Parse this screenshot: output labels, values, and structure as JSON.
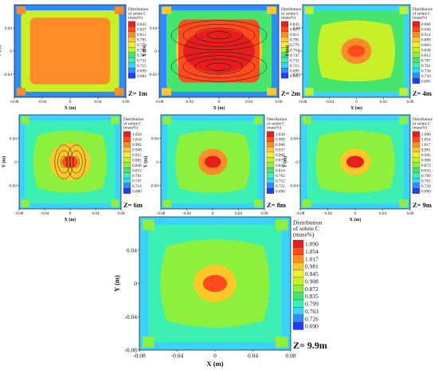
{
  "chart_data": [
    {
      "type": "heatmap",
      "panel_label": "Z= 1m",
      "legend_title": [
        "Distribution",
        "of solute C",
        "(mass%)"
      ],
      "legend_levels": [
        0.843,
        0.827,
        0.811,
        0.795,
        0.779,
        0.763,
        0.747,
        0.731,
        0.715,
        0.699,
        0.683
      ],
      "xlabel": "X (m)",
      "ylabel": "Y (m)",
      "xticks": [
        "-0.08",
        "-0.04",
        "0",
        "0.04",
        "0.08"
      ],
      "yticks": [
        "0.04",
        "0",
        "-0.04"
      ],
      "xlim": [
        -0.08,
        0.08
      ],
      "ylim": [
        -0.08,
        0.08
      ],
      "field": {
        "outer": 0.699,
        "shell": 0.763,
        "core": 0.811,
        "hot": null,
        "peak": null,
        "streamlines": "none"
      }
    },
    {
      "type": "heatmap",
      "panel_label": "Z= 2m",
      "legend_title": [
        "Distribution",
        "of solute C",
        "(mass%)"
      ],
      "legend_levels": [
        0.843,
        0.827,
        0.811,
        0.795,
        0.779,
        0.763,
        0.747,
        0.731,
        0.715,
        0.699,
        0.683
      ],
      "xlabel": "X (m)",
      "ylabel": "Y (m)",
      "xticks": [
        "-0.08",
        "-0.04",
        "0",
        "0.04",
        "0.08"
      ],
      "yticks": [
        "0.04",
        "0",
        "-0.04"
      ],
      "xlim": [
        -0.08,
        0.08
      ],
      "ylim": [
        -0.08,
        0.08
      ],
      "field": {
        "outer": 0.699,
        "shell": 0.747,
        "core": 0.795,
        "hot": 0.827,
        "peak": 0.843,
        "streamlines": "large"
      }
    },
    {
      "type": "heatmap",
      "panel_label": "Z= 4m",
      "legend_title": [
        "Distribution",
        "of solute C",
        "(mass%)"
      ],
      "legend_levels": [
        0.968,
        0.94,
        0.914,
        0.889,
        0.863,
        0.838,
        0.812,
        0.787,
        0.761,
        0.736,
        0.71,
        0.685
      ],
      "xlabel": "X (m)",
      "ylabel": "Y (m)",
      "xticks": [
        "-0.08",
        "-0.04",
        "0",
        "0.04",
        "0.08"
      ],
      "yticks": [
        "0.04",
        "0",
        "-0.04"
      ],
      "xlim": [
        -0.08,
        0.08
      ],
      "ylim": [
        -0.08,
        0.08
      ],
      "field": {
        "outer": 0.736,
        "shell": 0.787,
        "core": 0.838,
        "hot": 0.914,
        "peak": 0.94,
        "streamlines": "none"
      }
    },
    {
      "type": "heatmap",
      "panel_label": "Z= 6m",
      "legend_title": [
        "Distribution",
        "of solute C",
        "(mass%)"
      ],
      "legend_levels": [
        1.05,
        1.016,
        0.982,
        0.949,
        0.915,
        0.882,
        0.848,
        0.815,
        0.781,
        0.747,
        0.714,
        0.68
      ],
      "xlabel": "X (m)",
      "ylabel": "Y (m)",
      "xticks": [
        "-0.08",
        "-0.04",
        "0",
        "0.04",
        "0.08"
      ],
      "yticks": [
        "0.04",
        "0",
        "-0.04"
      ],
      "xlim": [
        -0.08,
        0.08
      ],
      "ylim": [
        -0.08,
        0.08
      ],
      "field": {
        "outer": 0.747,
        "shell": 0.781,
        "core": 0.848,
        "hot": 0.949,
        "peak": 1.016,
        "streamlines": "small"
      }
    },
    {
      "type": "heatmap",
      "panel_label": "Z= 8m",
      "legend_title": [
        "Distribution",
        "of solute C",
        "(mass%)"
      ],
      "legend_levels": [
        1.03,
        0.999,
        0.968,
        0.937,
        0.906,
        0.875,
        0.845,
        0.814,
        0.783,
        0.752,
        0.721,
        0.69
      ],
      "xlabel": "X (m)",
      "ylabel": "Y (m)",
      "xticks": [
        "-0.08",
        "-0.04",
        "0",
        "0.04",
        "0.08"
      ],
      "yticks": [
        "0.04",
        "0",
        "-0.04"
      ],
      "xlim": [
        -0.08,
        0.08
      ],
      "ylim": [
        -0.08,
        0.08
      ],
      "field": {
        "outer": 0.752,
        "shell": 0.783,
        "core": 0.845,
        "hot": 0.968,
        "peak": 1.03,
        "streamlines": "none"
      }
    },
    {
      "type": "heatmap",
      "panel_label": "Z= 9m",
      "legend_title": [
        "Distribution",
        "of solute C",
        "(mass%)"
      ],
      "legend_levels": [
        1.09,
        1.054,
        1.017,
        0.981,
        0.945,
        0.908,
        0.872,
        0.835,
        0.799,
        0.763,
        0.726,
        0.69
      ],
      "xlabel": "X (m)",
      "ylabel": "Y (m)",
      "xticks": [
        "-0.08",
        "-0.04",
        "0",
        "0.04",
        "0.08"
      ],
      "yticks": [
        "0.04",
        "0",
        "-0.04"
      ],
      "xlim": [
        -0.08,
        0.08
      ],
      "ylim": [
        -0.08,
        0.08
      ],
      "field": {
        "outer": 0.763,
        "shell": 0.799,
        "core": 0.872,
        "hot": 0.981,
        "peak": 1.09,
        "streamlines": "none"
      }
    },
    {
      "type": "heatmap",
      "panel_label": "Z= 9.9m",
      "legend_title": [
        "Distribution",
        "of solute C",
        "(mass%)"
      ],
      "legend_levels": [
        1.09,
        1.054,
        1.017,
        0.981,
        0.945,
        0.908,
        0.872,
        0.835,
        0.799,
        0.763,
        0.726,
        0.69
      ],
      "xlabel": "X (m)",
      "ylabel": "Y (m)",
      "xticks": [
        "-0.08",
        "-0.04",
        "0",
        "0.04",
        "0.08"
      ],
      "yticks": [
        "0.04",
        "0",
        "-0.04",
        "-0.08"
      ],
      "xlim": [
        -0.08,
        0.08
      ],
      "ylim": [
        -0.08,
        0.08
      ],
      "field": {
        "outer": 0.763,
        "shell": 0.799,
        "core": 0.872,
        "hot": 0.981,
        "peak": 1.054,
        "streamlines": "none"
      }
    }
  ]
}
